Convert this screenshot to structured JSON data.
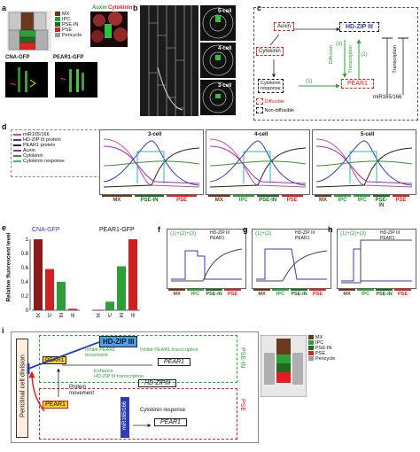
{
  "panel_letters": {
    "a": "a",
    "b": "b",
    "c": "c",
    "d": "d",
    "e": "e",
    "f": "f",
    "g": "g",
    "h": "h",
    "i": "i"
  },
  "colors": {
    "mx": "#6b3a1e",
    "ipc": "#2e9e3a",
    "psein": "#1f6a1f",
    "pse": "#e02020",
    "pericycle": "#9a9a9a",
    "hdzip": "#2c3fae",
    "pear1": "#222222",
    "mir": "#c8508a",
    "auxin": "#9b2dbf",
    "cytokinin": "#3a8f30",
    "cytoresp": "#30b0b8"
  },
  "panel_a": {
    "legend": [
      {
        "label": "MX",
        "color": "#6b3a1e"
      },
      {
        "label": "IPC",
        "color": "#2e9e3a"
      },
      {
        "label": "PSE-IN",
        "color": "#1f6a1f"
      },
      {
        "label": "PSE",
        "color": "#e02020"
      },
      {
        "label": "Pericycle",
        "color": "#9a9a9a"
      }
    ],
    "auxin_label": "Auxin",
    "cytokinin_label": "Cytokinin",
    "cna_label": "CNA-GFP",
    "pear1_label": "PEAR1-GFP"
  },
  "panel_b": {
    "cell5": "5-cell",
    "cell4": "4-cell",
    "cell3": "3-cell"
  },
  "panel_c": {
    "auxin": "Auxin",
    "hdzip": "HD-ZIP III",
    "cytokinin": "Cytokinin",
    "cytoresp_1": "Cytokinin",
    "cytoresp_2": "response",
    "pear1": "PEAR1",
    "mir": "miR165/166",
    "diffusion": "Diffusion",
    "transcription": "Transcription",
    "transcription2": "Transcription",
    "n3": "(3)",
    "n2": "(2)",
    "n1": "(1)",
    "diffusible": "Diffusible",
    "nondiffusible": "Non-diffusible"
  },
  "panel_d": {
    "legend": [
      {
        "label": "miR165/166",
        "color": "#c8508a"
      },
      {
        "label": "HD-ZIP III protein",
        "color": "#2c3fae"
      },
      {
        "label": "PEAR1 protein",
        "color": "#222222"
      },
      {
        "label": "Auxin",
        "color": "#9b2dbf"
      },
      {
        "label": "Cytokinin",
        "color": "#3a8f30"
      },
      {
        "label": "Cytokinin response",
        "color": "#30b0b8"
      }
    ],
    "plots": [
      {
        "title": "3-cell",
        "zones": [
          "MX",
          "PSE-IN",
          "PSE"
        ]
      },
      {
        "title": "4-cell",
        "zones": [
          "MX",
          "IPC",
          "PSE-IN",
          "PSE"
        ]
      },
      {
        "title": "5-cell",
        "zones": [
          "MX",
          "IPC",
          "IPC",
          "PSE-IN",
          "PSE"
        ]
      }
    ]
  },
  "panel_e": {
    "title1": "CNA-GFP",
    "title2": "PEAR1-GFP",
    "ylabel": "Relative fluorescent level",
    "ticks": [
      "1",
      "0.8",
      "0.6",
      "0.4",
      "0.2",
      "0"
    ],
    "cats": [
      "MX",
      "IPC",
      "PSE-IN",
      "PSE"
    ]
  },
  "chart_data": [
    {
      "type": "bar",
      "title": "CNA-GFP",
      "categories": [
        "MX",
        "IPC",
        "PSE-IN",
        "PSE"
      ],
      "values": [
        1.0,
        0.58,
        0.4,
        0.02
      ],
      "ylabel": "Relative fluorescent level",
      "ylim": [
        0,
        1
      ]
    },
    {
      "type": "bar",
      "title": "PEAR1-GFP",
      "categories": [
        "MX",
        "IPC",
        "PSE-IN",
        "PSE"
      ],
      "values": [
        0.0,
        0.12,
        0.62,
        1.0
      ],
      "ylim": [
        0,
        1
      ]
    }
  ],
  "panel_fgh": {
    "plots": [
      {
        "letter": "f",
        "ann": "(1)+(2)+(3)"
      },
      {
        "letter": "g",
        "ann": "(1)+(2)"
      },
      {
        "letter": "h",
        "ann": "(1)+(2)+(3)"
      }
    ],
    "legend": [
      "HD-ZIP III",
      "PEAR1"
    ],
    "zones": [
      "MX",
      "IPC",
      "PSE-IN",
      "PSE"
    ]
  },
  "panel_i": {
    "side_label": "Periclinal cell division",
    "pse_in": "PSE-IN",
    "pse": "PSE",
    "hdzip": "HD-ZIP III",
    "pear1_a": "PEAR1",
    "pear1_b": "PEAR1",
    "pear1_box1": "PEAR1",
    "hdzip_box": "HD-ZIPIII",
    "pear1_box2": "PEAR1",
    "inhibit_move": "Inhibit PEAR1 movement",
    "inhibit_tx": "Inhibit PEAR1 transcription",
    "enhance_1": "Enhance",
    "enhance_2": "HD-ZIP III transcription",
    "protein_1": "Protein",
    "protein_2": "movement",
    "cyto_resp": "Cytokinin response",
    "mir": "miR165/166",
    "legend": [
      {
        "label": "MX",
        "color": "#6b3a1e"
      },
      {
        "label": "IPC",
        "color": "#2e9e3a"
      },
      {
        "label": "PSE-IN",
        "color": "#1f6a1f"
      },
      {
        "label": "PSE",
        "color": "#e02020"
      },
      {
        "label": "Pericycle",
        "color": "#9a9a9a"
      }
    ]
  }
}
